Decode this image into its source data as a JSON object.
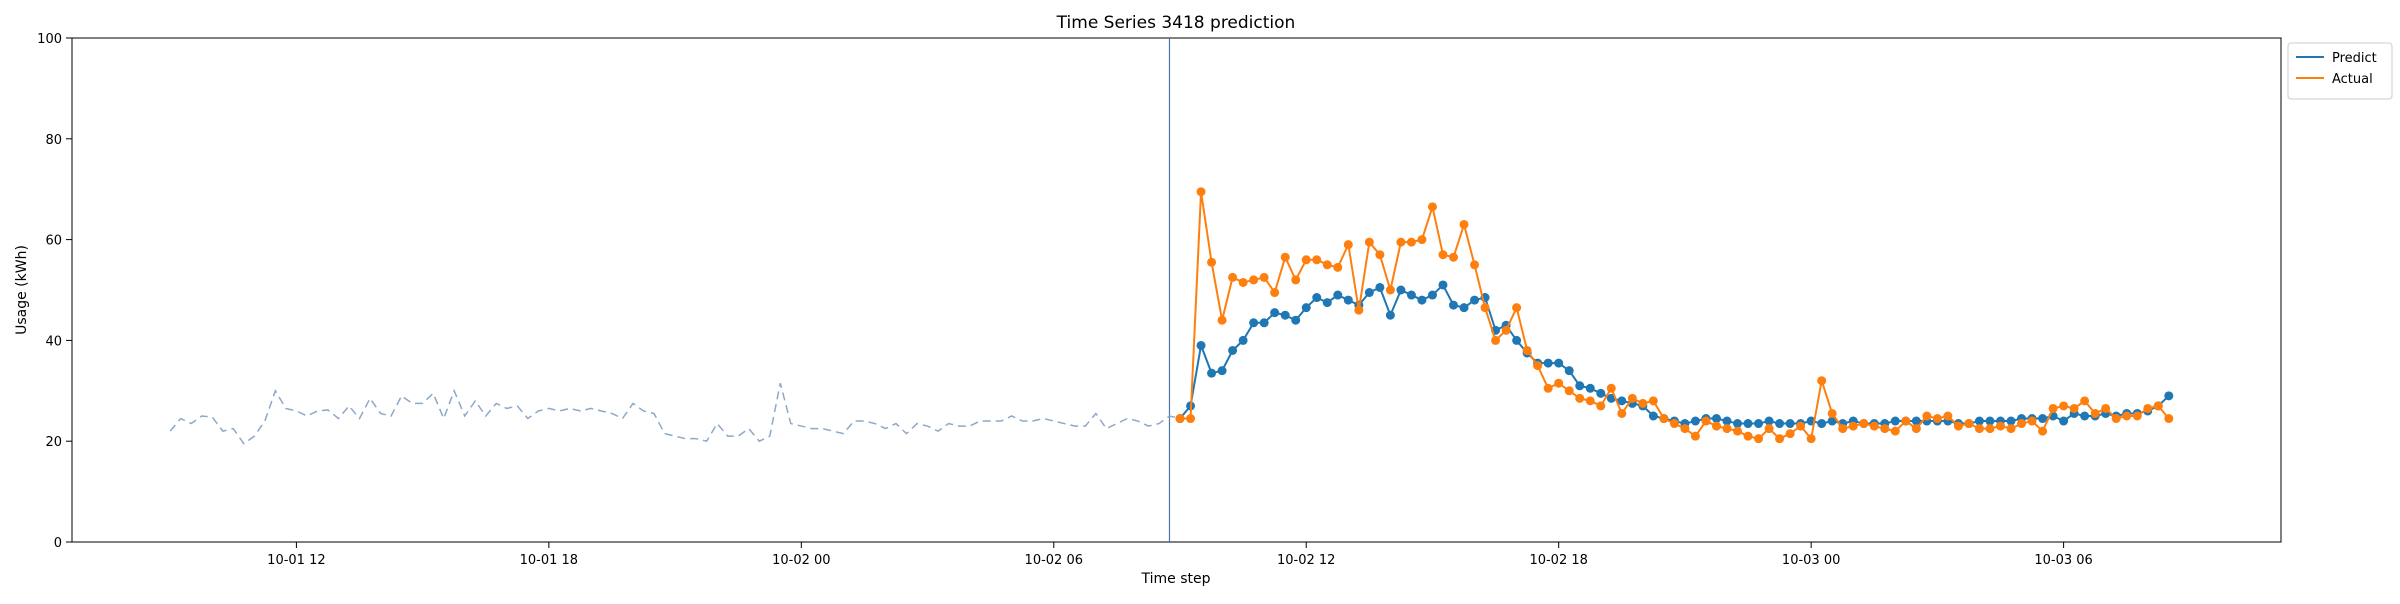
{
  "chart_data": {
    "type": "line",
    "title": "Time Series 3418 prediction",
    "xlabel": "Time step",
    "ylabel": "Usage (kWh)",
    "ylim": [
      0,
      100
    ],
    "yticks": [
      0,
      20,
      40,
      60,
      80,
      100
    ],
    "xlim": [
      "2023-10-01 06:40",
      "2023-10-03 11:10"
    ],
    "xticks": [
      {
        "value": "2023-10-01 12:00",
        "label": "10-01 12"
      },
      {
        "value": "2023-10-01 18:00",
        "label": "10-01 18"
      },
      {
        "value": "2023-10-02 00:00",
        "label": "10-02 00"
      },
      {
        "value": "2023-10-02 06:00",
        "label": "10-02 06"
      },
      {
        "value": "2023-10-02 12:00",
        "label": "10-02 12"
      },
      {
        "value": "2023-10-02 18:00",
        "label": "10-02 18"
      },
      {
        "value": "2023-10-03 00:00",
        "label": "10-03 00"
      },
      {
        "value": "2023-10-03 06:00",
        "label": "10-03 06"
      }
    ],
    "interval_minutes": 15,
    "forecast_start": "2023-10-02 08:45",
    "legend": {
      "placement": "outside-top-right"
    },
    "colors": {
      "history": "#8da8c8",
      "predict": "#1f77b4",
      "actual": "#ff7f0e",
      "marker": "#4c72b0"
    },
    "series": [
      {
        "name": "",
        "style": "dashed",
        "x_start": "2023-10-01 09:00",
        "values": [
          22.0,
          24.5,
          23.5,
          25.0,
          24.8,
          22.0,
          22.5,
          19.5,
          21.0,
          24.0,
          30.0,
          26.5,
          26.0,
          25.0,
          26.0,
          26.2,
          24.5,
          27.0,
          24.5,
          28.5,
          25.5,
          25.0,
          29.0,
          27.5,
          27.5,
          29.5,
          24.5,
          30.0,
          25.0,
          28.0,
          25.0,
          27.5,
          26.5,
          27.0,
          24.5,
          26.0,
          26.5,
          26.0,
          26.5,
          26.0,
          26.5,
          26.0,
          25.5,
          24.5,
          27.5,
          26.0,
          25.5,
          21.5,
          21.0,
          20.5,
          20.5,
          20.0,
          23.5,
          21.0,
          21.0,
          22.5,
          20.0,
          21.0,
          31.5,
          23.5,
          23.0,
          22.5,
          22.5,
          22.0,
          21.5,
          24.0,
          24.0,
          23.5,
          22.5,
          23.5,
          21.5,
          23.5,
          23.0,
          22.0,
          23.5,
          23.0,
          23.0,
          24.0,
          24.0,
          24.0,
          25.0,
          24.0,
          24.0,
          24.5,
          24.0,
          23.5,
          23.0,
          23.0,
          25.5,
          22.5,
          23.5,
          24.5,
          24.0,
          23.0,
          23.5,
          25.0,
          24.5
        ]
      },
      {
        "name": "Predict",
        "style": "solid-markers",
        "x_start": "2023-10-02 09:00",
        "values": [
          24.5,
          27.0,
          39.0,
          33.5,
          34.0,
          38.0,
          40.0,
          43.5,
          43.5,
          45.5,
          45.0,
          44.0,
          46.5,
          48.5,
          47.5,
          49.0,
          48.0,
          47.0,
          49.5,
          50.5,
          45.0,
          50.0,
          49.0,
          48.0,
          49.0,
          51.0,
          47.0,
          46.5,
          48.0,
          48.5,
          42.0,
          43.0,
          40.0,
          37.5,
          35.5,
          35.5,
          35.5,
          34.0,
          31.0,
          30.5,
          29.5,
          28.5,
          28.0,
          27.5,
          27.0,
          25.0,
          24.5,
          24.0,
          23.5,
          24.0,
          24.5,
          24.5,
          24.0,
          23.5,
          23.5,
          23.5,
          24.0,
          23.5,
          23.5,
          23.5,
          24.0,
          23.5,
          24.0,
          23.5,
          24.0,
          23.5,
          23.5,
          23.5,
          24.0,
          24.0,
          24.0,
          24.0,
          24.0,
          24.0,
          23.5,
          23.5,
          24.0,
          24.0,
          24.0,
          24.0,
          24.5,
          24.5,
          24.5,
          25.0,
          24.0,
          25.5,
          25.0,
          25.0,
          25.5,
          25.0,
          25.5,
          25.5,
          26.0,
          27.0,
          29.0
        ]
      },
      {
        "name": "Actual",
        "style": "solid-markers",
        "x_start": "2023-10-02 09:00",
        "values": [
          24.5,
          24.5,
          69.5,
          55.5,
          44.0,
          52.5,
          51.5,
          52.0,
          52.5,
          49.5,
          56.5,
          52.0,
          56.0,
          56.0,
          55.0,
          54.5,
          59.0,
          46.0,
          59.5,
          57.0,
          50.0,
          59.5,
          59.5,
          60.0,
          66.5,
          57.0,
          56.5,
          63.0,
          55.0,
          46.5,
          40.0,
          42.0,
          46.5,
          38.0,
          35.0,
          30.5,
          31.5,
          30.0,
          28.5,
          28.0,
          27.0,
          30.5,
          25.5,
          28.5,
          27.5,
          28.0,
          24.5,
          23.5,
          22.5,
          21.0,
          24.0,
          23.0,
          22.5,
          22.0,
          21.0,
          20.5,
          22.5,
          20.5,
          21.5,
          23.0,
          20.5,
          32.0,
          25.5,
          22.5,
          23.0,
          23.5,
          23.0,
          22.5,
          22.0,
          24.0,
          22.5,
          25.0,
          24.5,
          25.0,
          23.0,
          23.5,
          22.5,
          22.5,
          23.0,
          22.5,
          23.5,
          24.0,
          22.0,
          26.5,
          27.0,
          26.5,
          28.0,
          25.5,
          26.5,
          24.5,
          25.0,
          25.0,
          26.5,
          27.0,
          24.5
        ]
      }
    ]
  }
}
